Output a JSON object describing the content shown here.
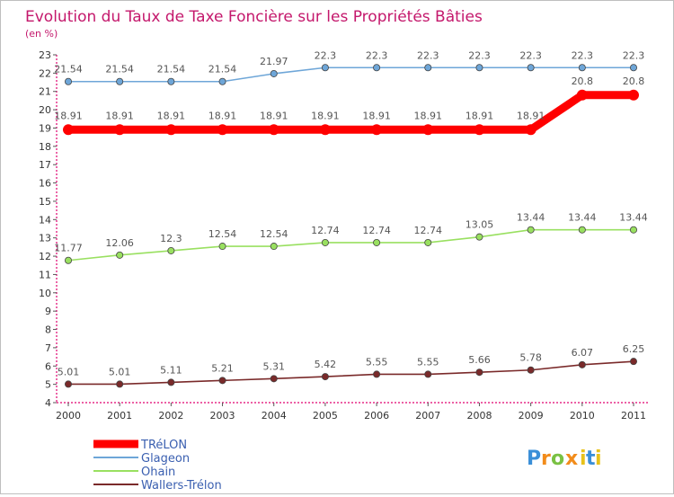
{
  "chart_data": {
    "type": "line",
    "title": "Evolution du Taux de Taxe Foncière sur les Propriétés Bâties",
    "subtitle": "(en %)",
    "xlabel": "",
    "ylabel": "",
    "ylim": [
      4,
      23
    ],
    "yticks": [
      4,
      5,
      6,
      7,
      8,
      9,
      10,
      11,
      12,
      13,
      14,
      15,
      16,
      17,
      18,
      19,
      20,
      21,
      22,
      23
    ],
    "grid": false,
    "legend_position": "bottom-left",
    "categories": [
      "2000",
      "2001",
      "2002",
      "2003",
      "2004",
      "2005",
      "2006",
      "2007",
      "2008",
      "2009",
      "2010",
      "2011"
    ],
    "series": [
      {
        "name": "TRéLON",
        "color": "#ff0000",
        "values": [
          18.91,
          18.91,
          18.91,
          18.91,
          18.91,
          18.91,
          18.91,
          18.91,
          18.91,
          18.91,
          20.8,
          20.8
        ],
        "labels": [
          "18.91",
          "18.91",
          "18.91",
          "18.91",
          "18.91",
          "18.91",
          "18.91",
          "18.91",
          "18.91",
          "18.91",
          "20.8",
          "20.8"
        ]
      },
      {
        "name": "Glageon",
        "color": "#6ea6d8",
        "values": [
          21.54,
          21.54,
          21.54,
          21.54,
          21.97,
          22.3,
          22.3,
          22.3,
          22.3,
          22.3,
          22.3,
          22.3
        ],
        "labels": [
          "21.54",
          "21.54",
          "21.54",
          "21.54",
          "21.97",
          "22.3",
          "22.3",
          "22.3",
          "22.3",
          "22.3",
          "22.3",
          "22.3"
        ]
      },
      {
        "name": "Ohain",
        "color": "#99e060",
        "values": [
          11.77,
          12.06,
          12.3,
          12.54,
          12.54,
          12.74,
          12.74,
          12.74,
          13.05,
          13.44,
          13.44,
          13.44
        ],
        "labels": [
          "11.77",
          "12.06",
          "12.3",
          "12.54",
          "12.54",
          "12.74",
          "12.74",
          "12.74",
          "13.05",
          "13.44",
          "13.44",
          "13.44"
        ]
      },
      {
        "name": "Wallers-Trélon",
        "color": "#7a2a2a",
        "values": [
          5.01,
          5.01,
          5.11,
          5.21,
          5.31,
          5.42,
          5.55,
          5.55,
          5.66,
          5.78,
          6.07,
          6.25
        ],
        "labels": [
          "5.01",
          "5.01",
          "5.11",
          "5.21",
          "5.31",
          "5.42",
          "5.55",
          "5.55",
          "5.66",
          "5.78",
          "6.07",
          "6.25"
        ]
      }
    ]
  },
  "brand": {
    "letters": [
      "P",
      "r",
      "o",
      "x",
      "i",
      "t",
      "i"
    ],
    "colors": [
      "#3a8fd8",
      "#f28c1b",
      "#7ac143",
      "#f28c1b",
      "#e8c21a",
      "#3a8fd8",
      "#e8c21a"
    ]
  }
}
